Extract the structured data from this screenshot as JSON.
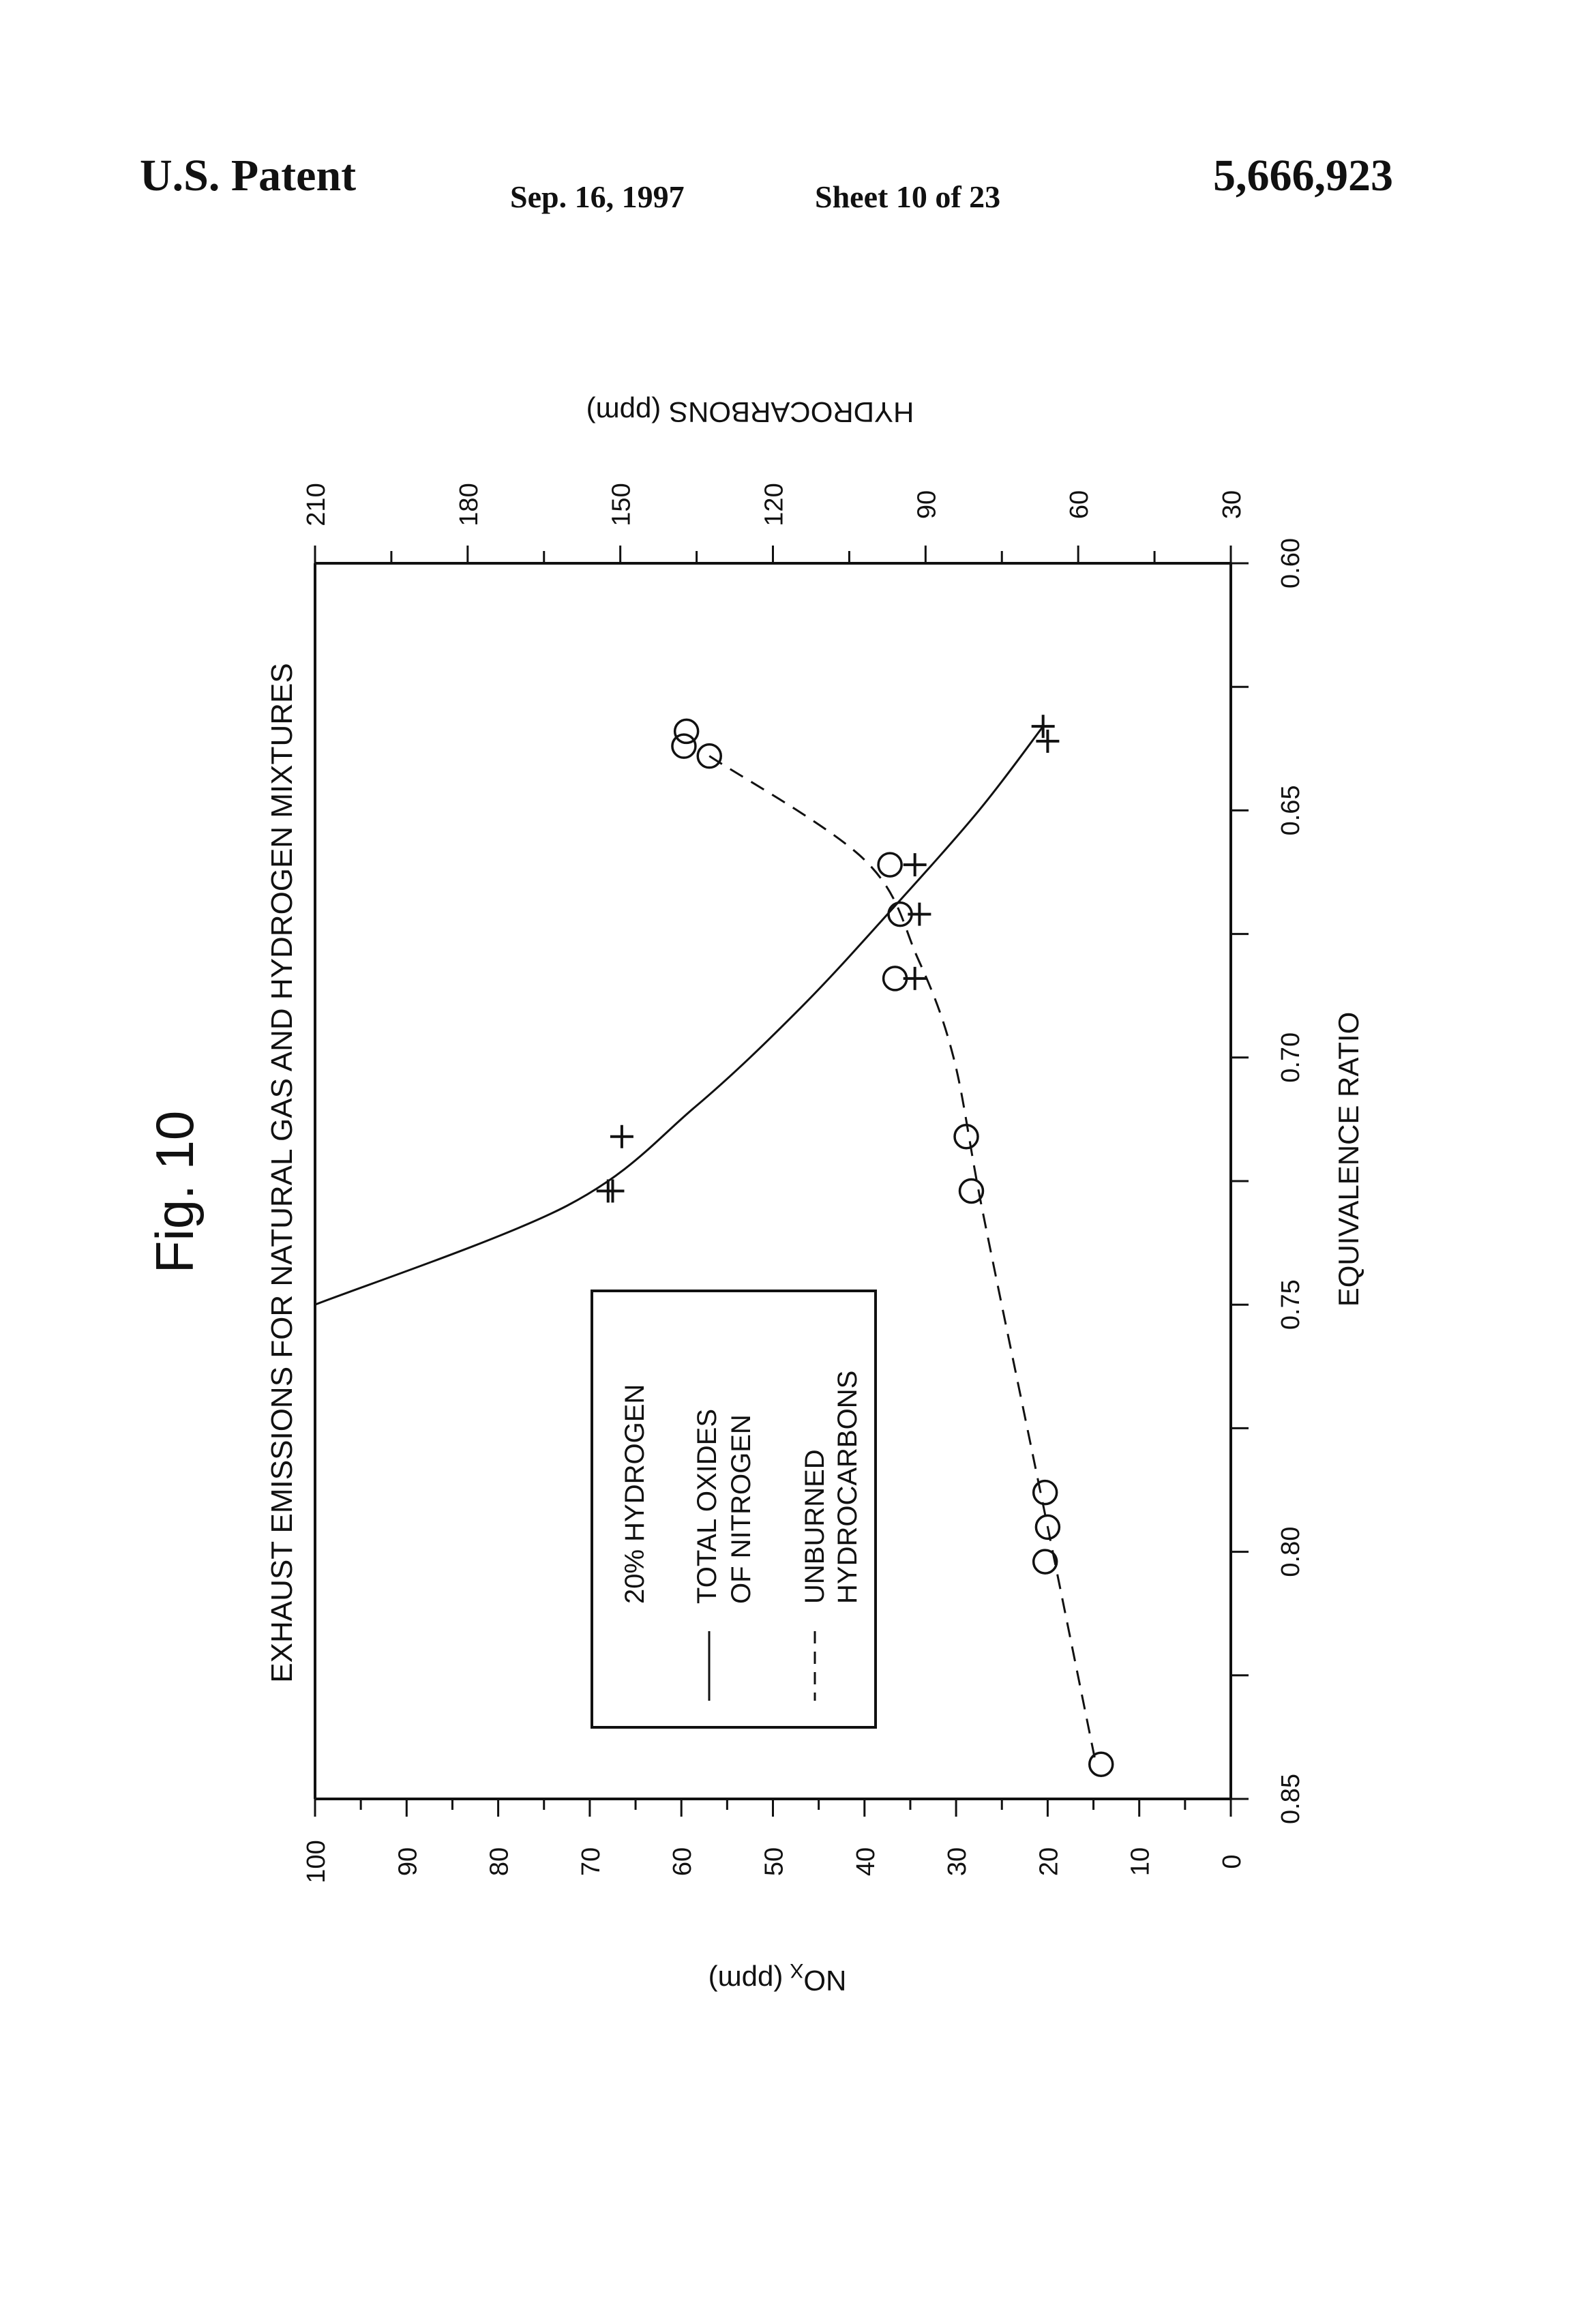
{
  "header": {
    "left": "U.S. Patent",
    "date": "Sep. 16, 1997",
    "sheet": "Sheet 10 of 23",
    "number": "5,666,923"
  },
  "figure": {
    "label": "Fig. 10"
  },
  "chart_data": {
    "type": "line",
    "title": "EXHAUST EMISSIONS FOR NATURAL GAS AND HYDROGEN MIXTURES",
    "xlabel": "EQUIVALENCE RATIO",
    "ylabel_left": "NO",
    "ylabel_left_sub": "X",
    "ylabel_left_unit": "(ppm)",
    "ylabel_right": "HYDROCARBONS (ppm)",
    "xlim": [
      0.6,
      0.85
    ],
    "ylim_left": [
      0,
      100
    ],
    "ylim_right": [
      30,
      210
    ],
    "x_ticks": [
      "0.60",
      "0.65",
      "0.70",
      "0.75",
      "0.80",
      "0.85"
    ],
    "y_left_ticks": [
      "0",
      "10",
      "20",
      "30",
      "40",
      "50",
      "60",
      "70",
      "80",
      "90",
      "100"
    ],
    "y_right_ticks": [
      "30",
      "60",
      "90",
      "120",
      "150",
      "180",
      "210"
    ],
    "legend": {
      "title": "20% HYDROGEN",
      "entries": [
        {
          "style": "solid",
          "label_line1": "TOTAL OXIDES",
          "label_line2": "OF NITROGEN"
        },
        {
          "style": "dashed",
          "label_line1": "UNBURNED",
          "label_line2": "HYDROCARBONS"
        }
      ]
    },
    "series": [
      {
        "name": "TOTAL OXIDES OF NITROGEN",
        "axis": "left",
        "marker": "plus",
        "line": "solid",
        "points": [
          [
            0.633,
            20.5
          ],
          [
            0.636,
            20.0
          ],
          [
            0.661,
            34.5
          ],
          [
            0.671,
            34.0
          ],
          [
            0.684,
            34.5
          ],
          [
            0.716,
            66.5
          ],
          [
            0.727,
            68.0
          ],
          [
            0.727,
            67.5
          ]
        ],
        "curve": [
          [
            0.633,
            20.5
          ],
          [
            0.65,
            27.5
          ],
          [
            0.67,
            37.0
          ],
          [
            0.69,
            47.0
          ],
          [
            0.71,
            58.5
          ],
          [
            0.73,
            72.5
          ],
          [
            0.75,
            100
          ]
        ]
      },
      {
        "name": "UNBURNED HYDROCARBONS",
        "axis": "right",
        "marker": "circle",
        "line": "dashed",
        "points": [
          [
            0.634,
            137.0
          ],
          [
            0.637,
            137.5
          ],
          [
            0.639,
            132.5
          ],
          [
            0.661,
            97.0
          ],
          [
            0.671,
            95.0
          ],
          [
            0.684,
            96.0
          ],
          [
            0.716,
            82.0
          ],
          [
            0.727,
            81.0
          ],
          [
            0.788,
            66.5
          ],
          [
            0.795,
            66.0
          ],
          [
            0.802,
            66.5
          ],
          [
            0.843,
            55.5
          ]
        ],
        "curve": [
          [
            0.639,
            132.5
          ],
          [
            0.66,
            102.0
          ],
          [
            0.68,
            91.5
          ],
          [
            0.7,
            84.5
          ],
          [
            0.73,
            79.0
          ],
          [
            0.78,
            69.0
          ],
          [
            0.8,
            65.0
          ],
          [
            0.843,
            56.5
          ]
        ]
      }
    ]
  }
}
